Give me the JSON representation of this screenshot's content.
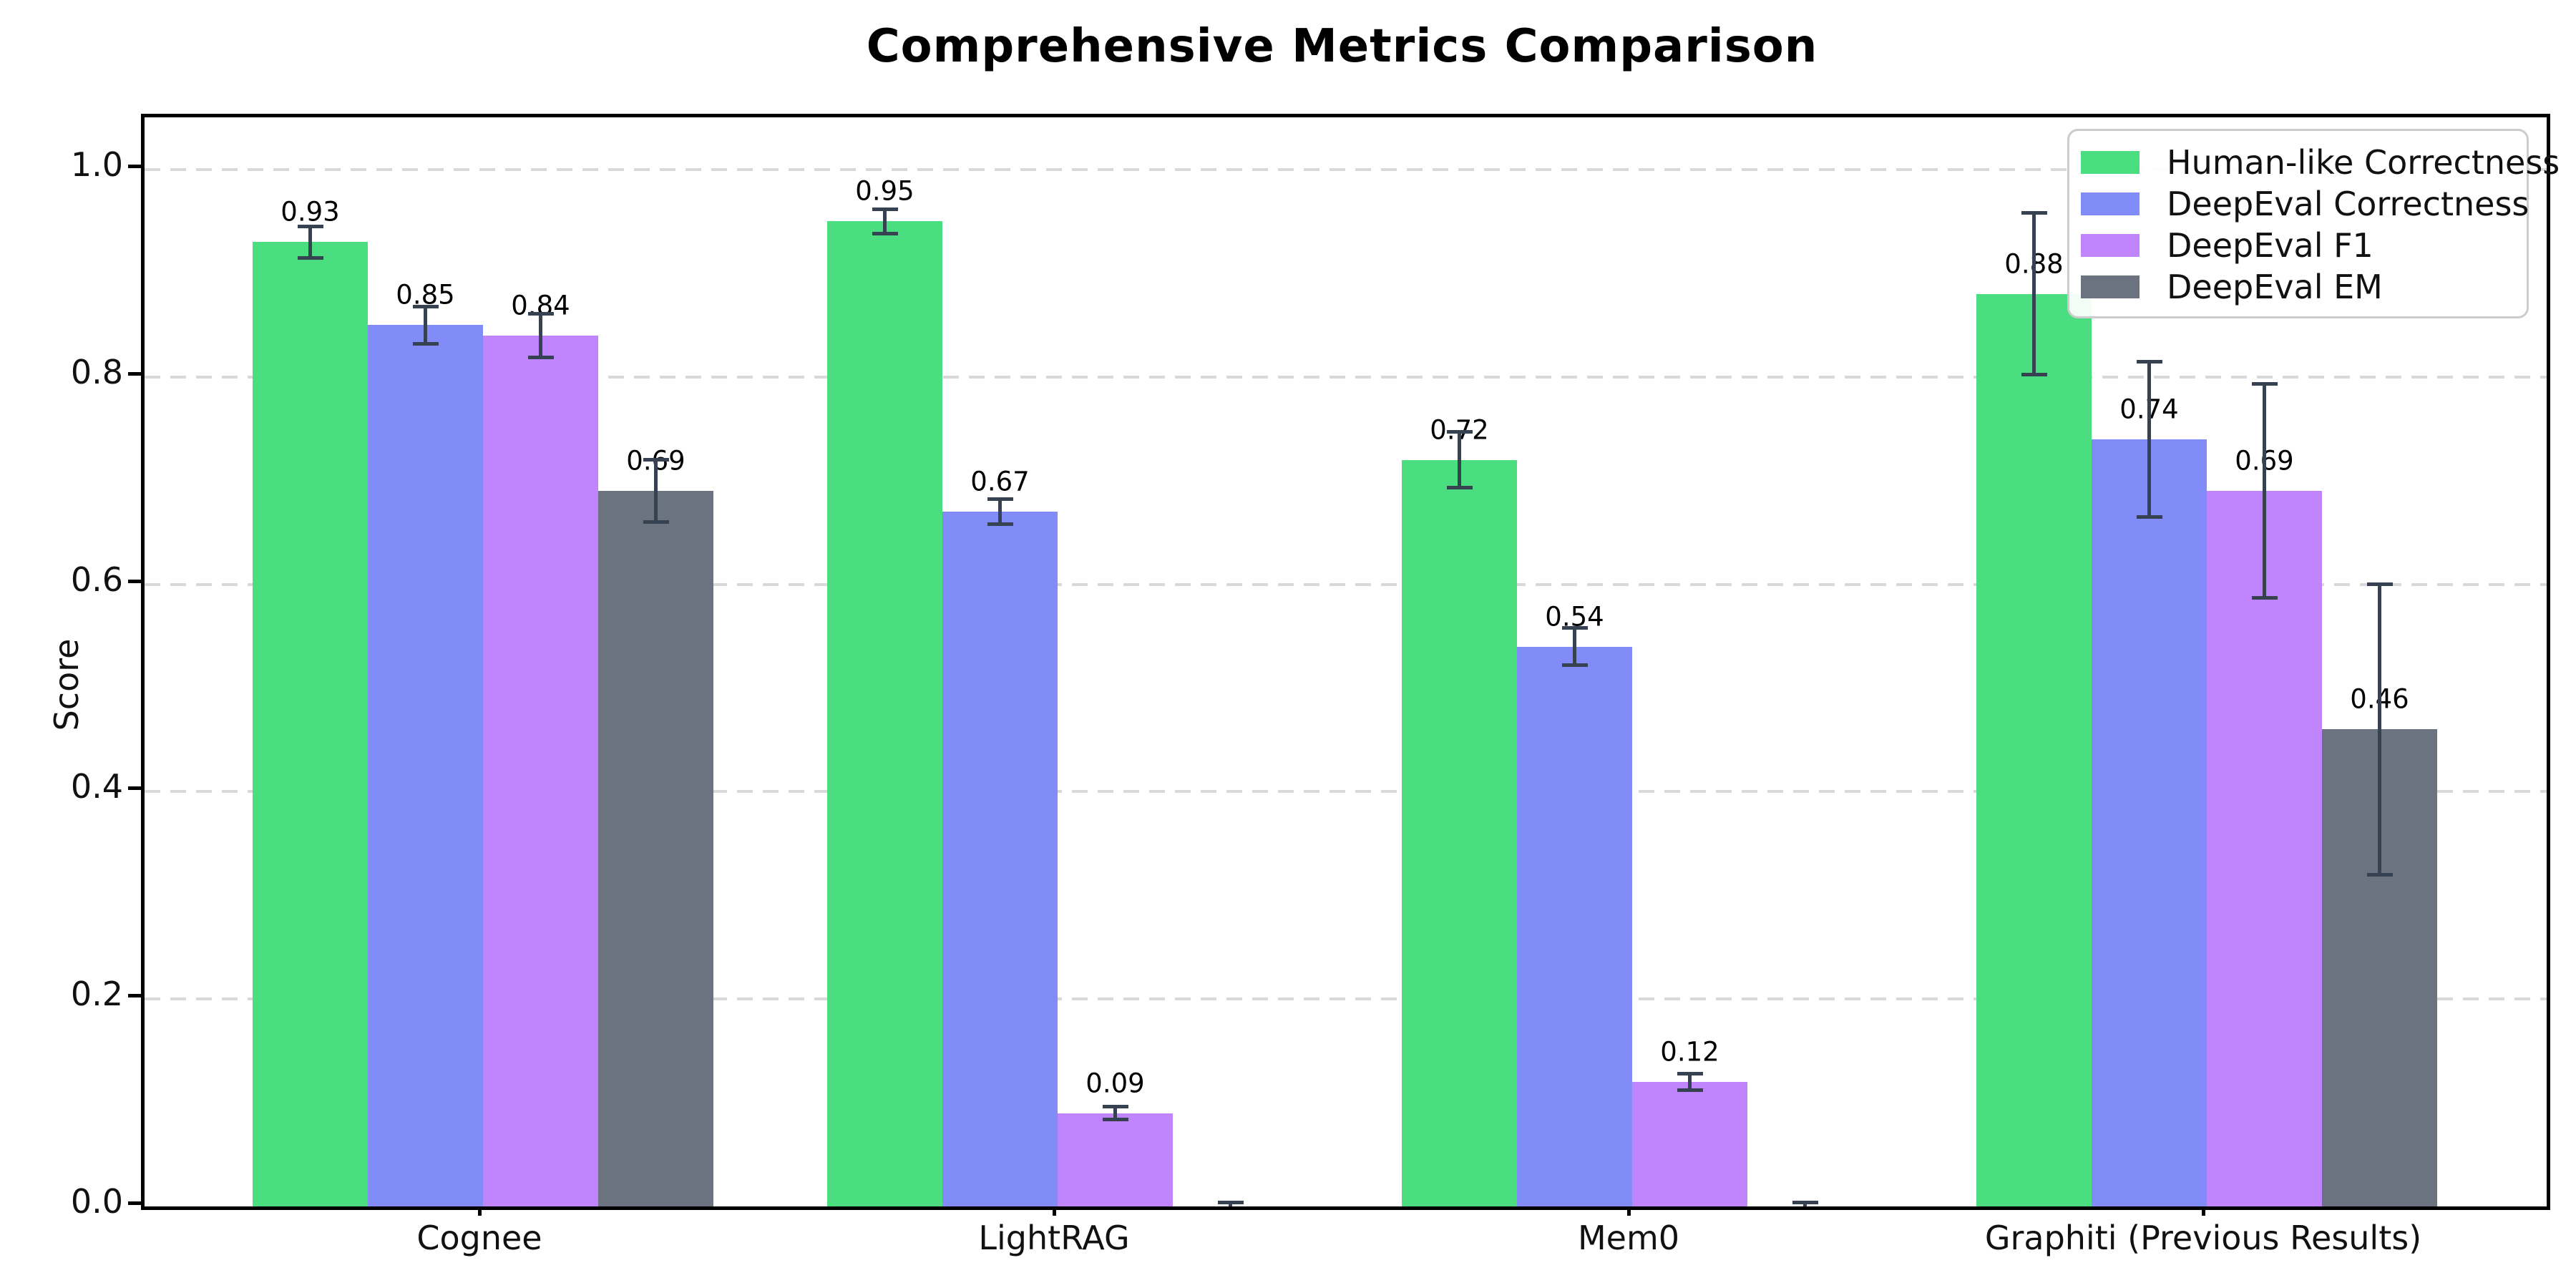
{
  "chart_data": {
    "type": "bar",
    "title": "Comprehensive Metrics Comparison",
    "ylabel": "Score",
    "xlabel": "",
    "categories": [
      "Cognee",
      "LightRAG",
      "Mem0",
      "Graphiti (Previous Results)"
    ],
    "series": [
      {
        "name": "Human-like Correctness",
        "color": "#4ade80",
        "values": [
          0.93,
          0.95,
          0.72,
          0.88
        ],
        "errors": [
          0.015,
          0.012,
          0.027,
          0.078
        ],
        "bar_labels": [
          "0.93",
          "0.95",
          "0.72",
          "0.88"
        ]
      },
      {
        "name": "DeepEval Correctness",
        "color": "#818cf8",
        "values": [
          0.85,
          0.67,
          0.54,
          0.74
        ],
        "errors": [
          0.018,
          0.012,
          0.018,
          0.075
        ],
        "bar_labels": [
          "0.85",
          "0.67",
          "0.54",
          "0.74"
        ]
      },
      {
        "name": "DeepEval F1",
        "color": "#c084fc",
        "values": [
          0.84,
          0.09,
          0.12,
          0.69
        ],
        "errors": [
          0.021,
          0.006,
          0.008,
          0.103
        ],
        "bar_labels": [
          "0.84",
          "0.09",
          "0.12",
          "0.69"
        ]
      },
      {
        "name": "DeepEval EM",
        "color": "#6b7280",
        "values": [
          0.69,
          0.0,
          0.0,
          0.46
        ],
        "errors": [
          0.03,
          0.004,
          0.004,
          0.14
        ],
        "bar_labels": [
          "0.69",
          "",
          "",
          "0.46"
        ]
      }
    ],
    "yticks": [
      "0.0",
      "0.2",
      "0.4",
      "0.6",
      "0.8",
      "1.0"
    ],
    "ylim": [
      0.0,
      1.05
    ],
    "grid": "horizontal-dashed",
    "legend_position": "upper-right",
    "error_bars": true
  },
  "colors": {
    "error_bar": "#364152",
    "gridline": "#d9d9d9",
    "axis": "#000000",
    "legend_border": "#cccccc",
    "background": "#ffffff"
  }
}
